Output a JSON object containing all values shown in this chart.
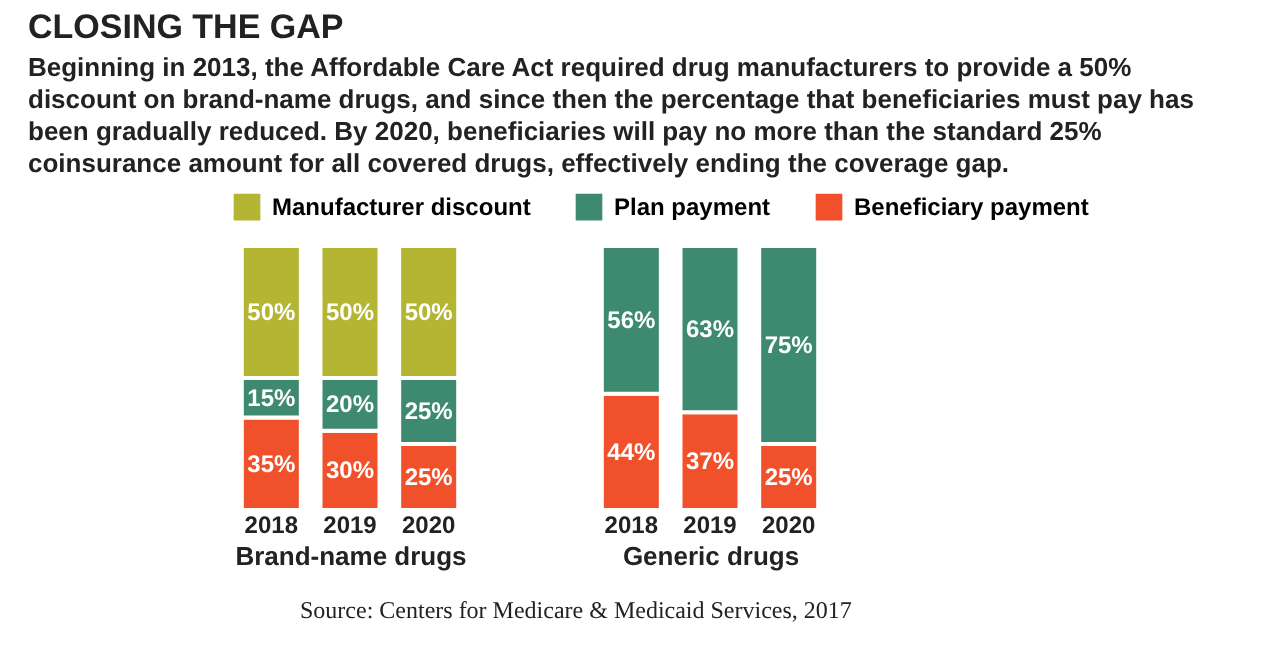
{
  "chart_data": [
    {
      "type": "bar",
      "title": "CLOSING THE GAP",
      "subtitle": "Beginning in 2013, the Affordable Care Act required drug manufacturers to provide a 50% discount on brand-name drugs, and since then the percentage that beneficiaries must pay has been gradually reduced. By 2020, beneficiaries will pay no more than the standard 25% coinsurance amount for all covered drugs, effectively ending the coverage gap.",
      "xlabel": "Brand-name drugs",
      "categories": [
        "2018",
        "2019",
        "2020"
      ],
      "stacked": true,
      "ylim": [
        0,
        100
      ],
      "tick_labels": "x",
      "legend": "top",
      "annotations": [
        "Source: Centers for Medicare & Medicaid Services, 2017"
      ],
      "series": [
        {
          "name": "Beneficiary payment",
          "color": "#f0512b",
          "values": [
            35,
            30,
            25
          ],
          "value_labels": [
            "35%",
            "30%",
            "25%"
          ]
        },
        {
          "name": "Plan payment",
          "color": "#3e8a70",
          "values": [
            15,
            20,
            25
          ],
          "value_labels": [
            "15%",
            "20%",
            "25%"
          ]
        },
        {
          "name": "Manufacturer discount",
          "color": "#b3b533",
          "values": [
            50,
            50,
            50
          ],
          "value_labels": [
            "50%",
            "50%",
            "50%"
          ]
        }
      ]
    },
    {
      "type": "bar",
      "xlabel": "Generic drugs",
      "categories": [
        "2018",
        "2019",
        "2020"
      ],
      "stacked": true,
      "ylim": [
        0,
        100
      ],
      "tick_labels": "x",
      "series": [
        {
          "name": "Beneficiary payment",
          "color": "#f0512b",
          "values": [
            44,
            37,
            25
          ],
          "value_labels": [
            "44%",
            "37%",
            "25%"
          ]
        },
        {
          "name": "Plan payment",
          "color": "#3e8a70",
          "values": [
            56,
            63,
            75
          ],
          "value_labels": [
            "56%",
            "63%",
            "75%"
          ]
        }
      ]
    }
  ]
}
